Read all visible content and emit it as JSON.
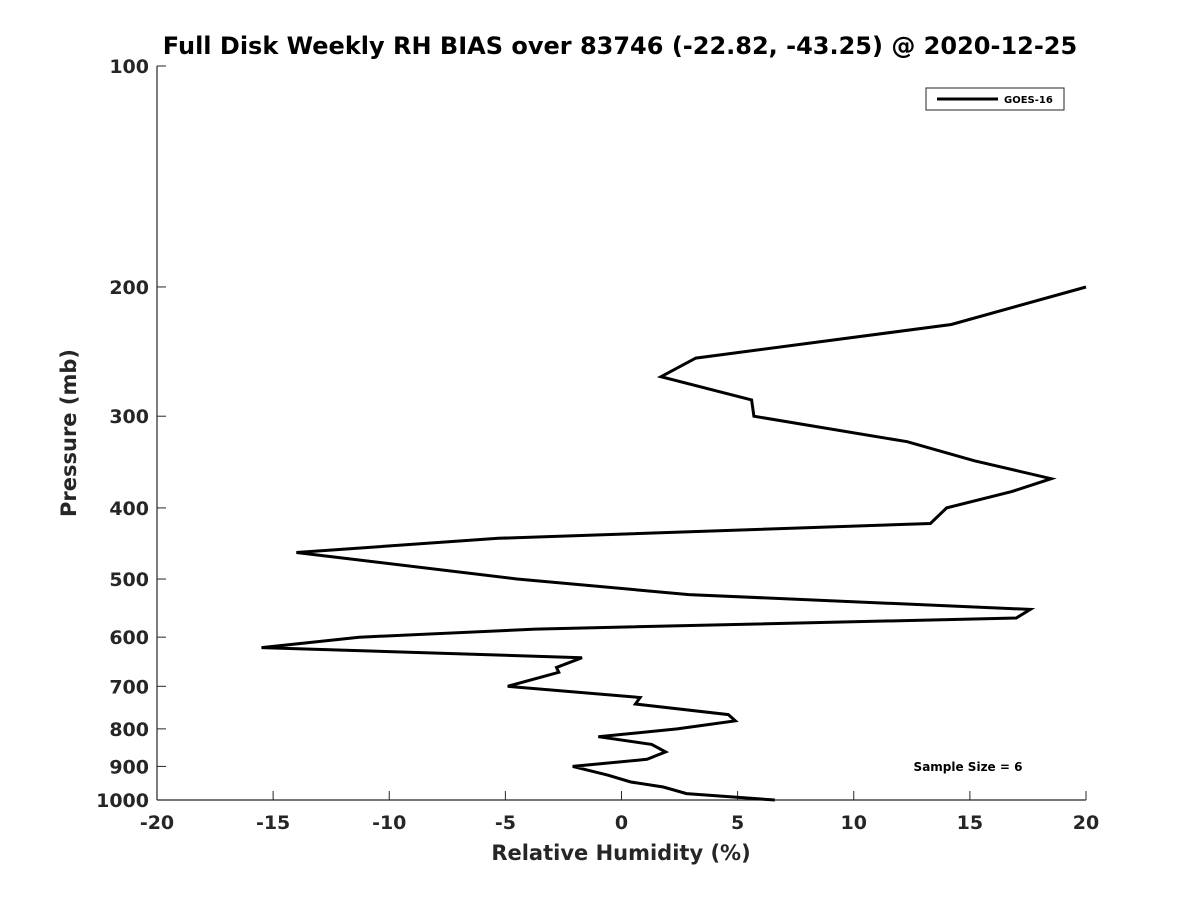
{
  "chart_data": {
    "type": "line",
    "title": "Full Disk Weekly RH BIAS over 83746 (-22.82, -43.25) @ 2020-12-25",
    "xlabel": "Relative Humidity (%)",
    "ylabel": "Pressure (mb)",
    "xlim": [
      -20,
      20
    ],
    "ylim": [
      100,
      1000
    ],
    "y_scale": "log",
    "y_reversed": true,
    "xticks": [
      "-20",
      "-15",
      "-10",
      "-5",
      "0",
      "5",
      "10",
      "15",
      "20"
    ],
    "yticks": [
      "100",
      "200",
      "300",
      "400",
      "500",
      "600",
      "700",
      "800",
      "900",
      "1000"
    ],
    "grid": false,
    "legend_position": "top-right",
    "series": [
      {
        "name": "GOES-16",
        "color": "#000000",
        "points": [
          {
            "x": 20.0,
            "p": 200
          },
          {
            "x": 14.2,
            "p": 225
          },
          {
            "x": 3.2,
            "p": 250
          },
          {
            "x": 1.7,
            "p": 265
          },
          {
            "x": 5.6,
            "p": 285
          },
          {
            "x": 5.7,
            "p": 300
          },
          {
            "x": 12.3,
            "p": 325
          },
          {
            "x": 15.2,
            "p": 345
          },
          {
            "x": 18.5,
            "p": 365
          },
          {
            "x": 16.8,
            "p": 380
          },
          {
            "x": 14.0,
            "p": 400
          },
          {
            "x": 13.3,
            "p": 420
          },
          {
            "x": -5.3,
            "p": 440
          },
          {
            "x": -14.0,
            "p": 460
          },
          {
            "x": -4.5,
            "p": 500
          },
          {
            "x": 2.9,
            "p": 525
          },
          {
            "x": 17.6,
            "p": 550
          },
          {
            "x": 17.0,
            "p": 565
          },
          {
            "x": -3.7,
            "p": 585
          },
          {
            "x": -11.3,
            "p": 600
          },
          {
            "x": -15.5,
            "p": 620
          },
          {
            "x": -1.7,
            "p": 640
          },
          {
            "x": -2.8,
            "p": 660
          },
          {
            "x": -2.7,
            "p": 670
          },
          {
            "x": -4.9,
            "p": 700
          },
          {
            "x": 0.8,
            "p": 725
          },
          {
            "x": 0.6,
            "p": 740
          },
          {
            "x": 4.6,
            "p": 765
          },
          {
            "x": 4.9,
            "p": 780
          },
          {
            "x": 2.4,
            "p": 800
          },
          {
            "x": -1.0,
            "p": 820
          },
          {
            "x": 1.3,
            "p": 840
          },
          {
            "x": 1.9,
            "p": 860
          },
          {
            "x": 1.1,
            "p": 880
          },
          {
            "x": -2.1,
            "p": 900
          },
          {
            "x": -0.6,
            "p": 925
          },
          {
            "x": 0.4,
            "p": 945
          },
          {
            "x": 1.8,
            "p": 960
          },
          {
            "x": 2.8,
            "p": 980
          },
          {
            "x": 6.6,
            "p": 1000
          }
        ]
      }
    ],
    "annotations": [
      "Sample Size = 6"
    ]
  }
}
